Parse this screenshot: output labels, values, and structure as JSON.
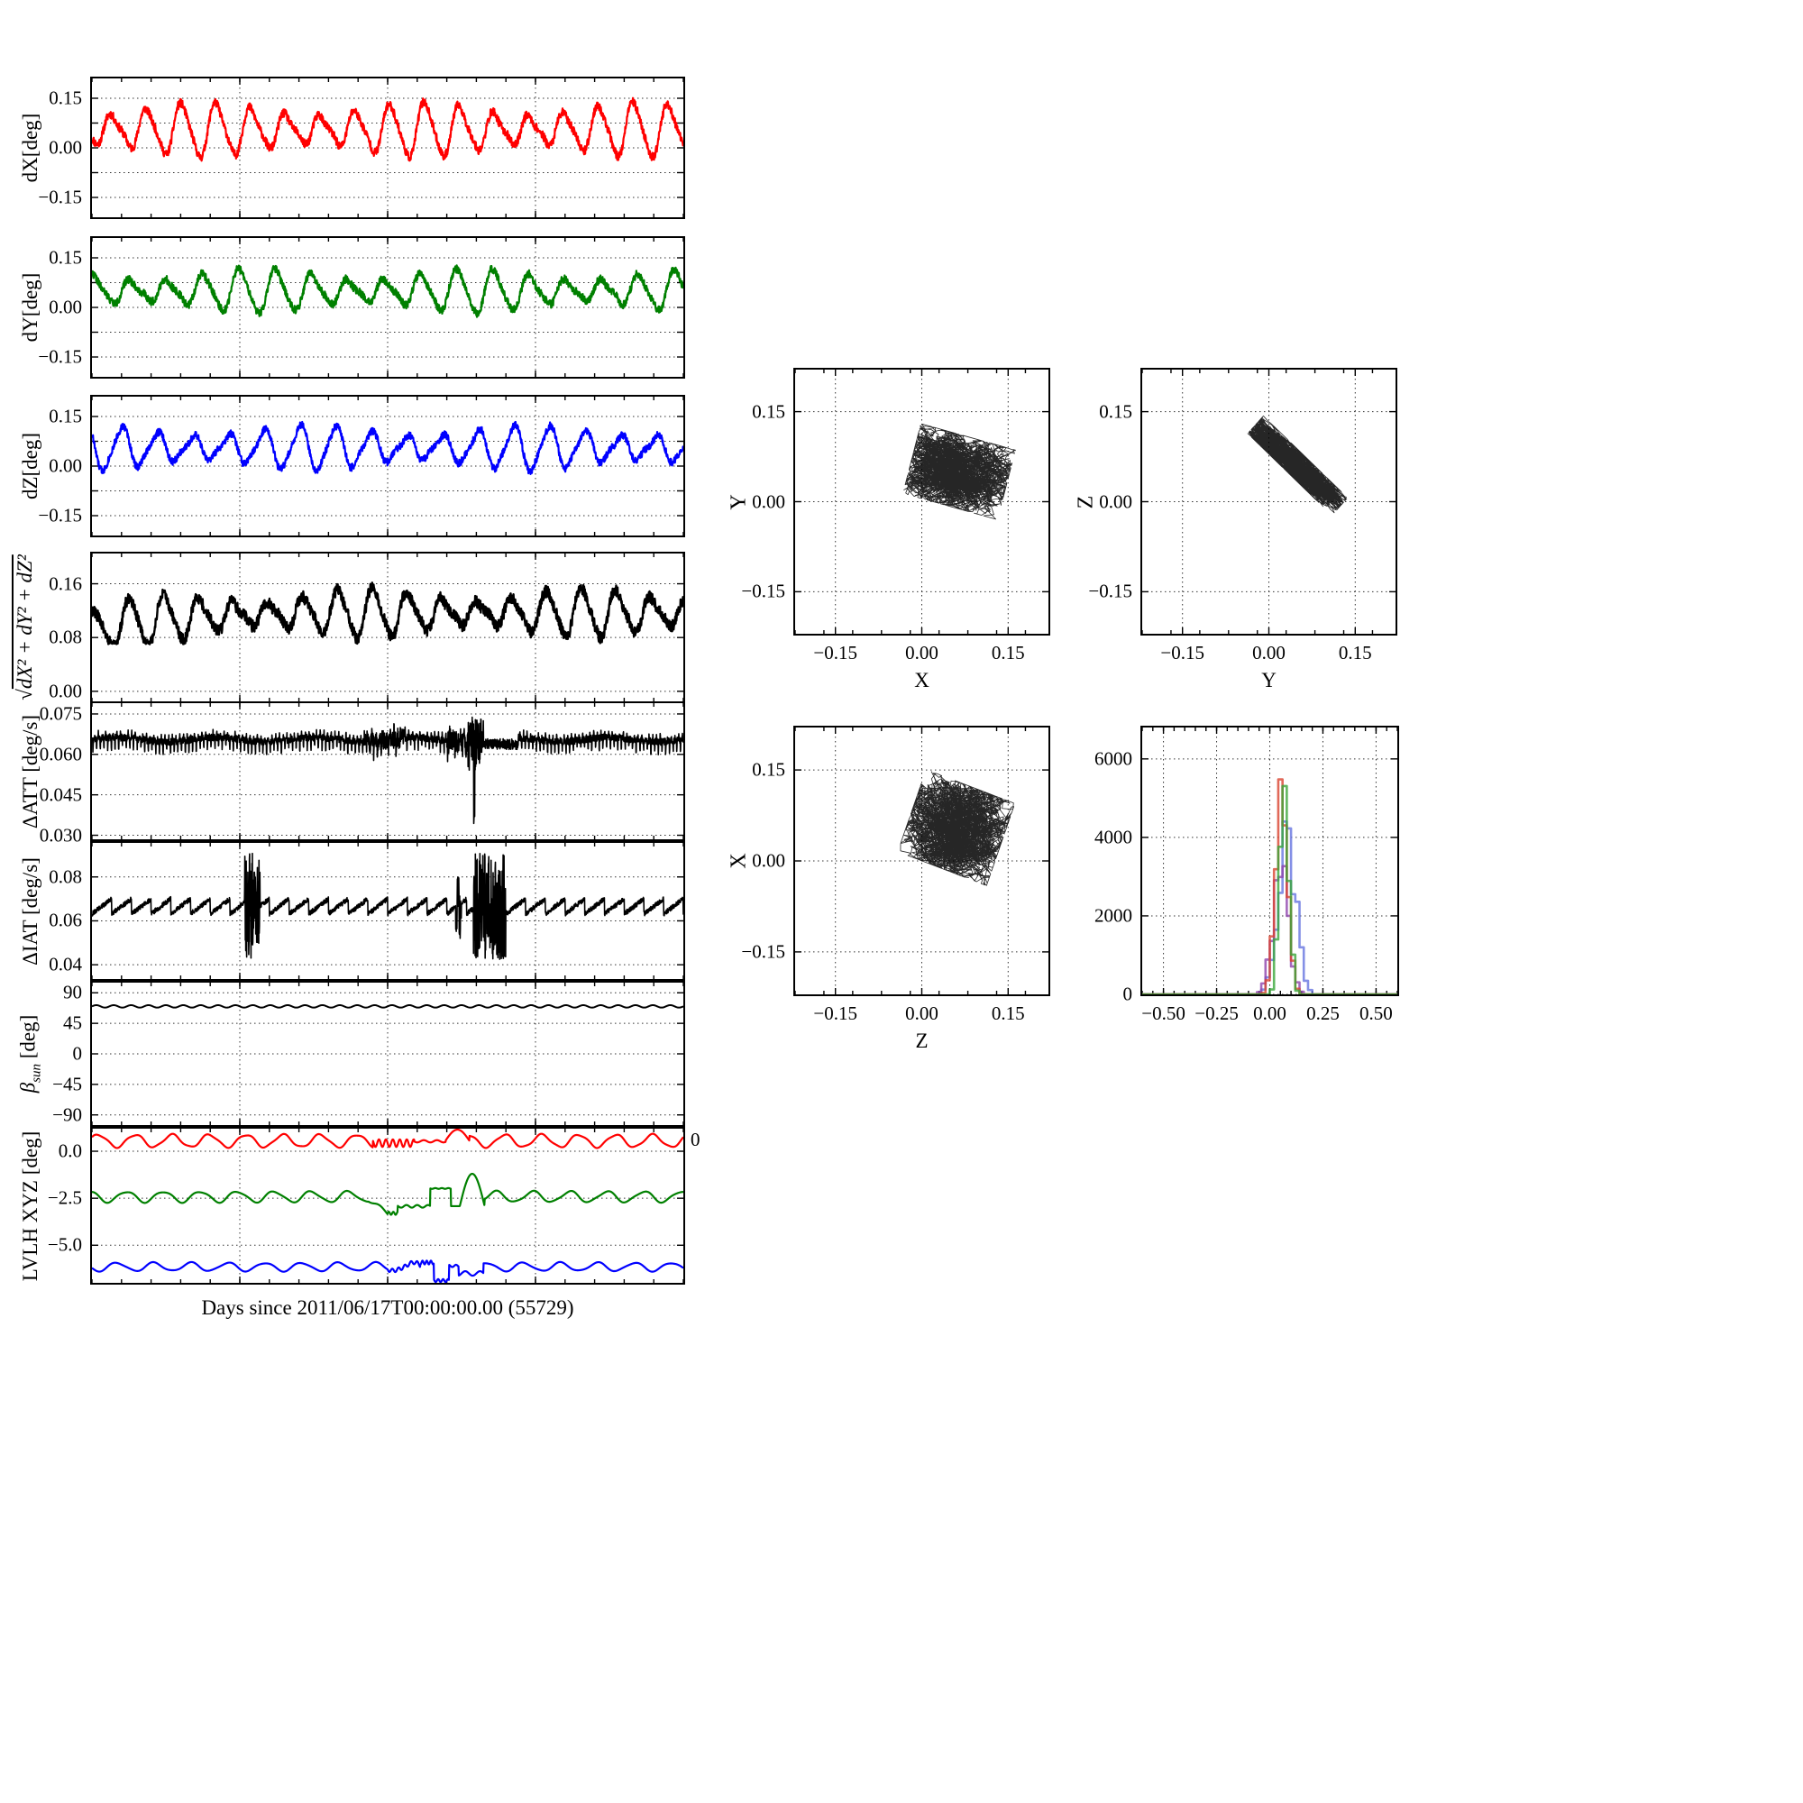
{
  "chart_data": {
    "figure": {
      "xlabel": "Days since 2011/06/17T00:00:00.00 (55729)",
      "stray_tick_label": "0",
      "background": "#ffffff"
    },
    "left_panels": [
      {
        "id": "dx",
        "type": "line",
        "ylabel": "dX[deg]",
        "ylim": [
          -0.21,
          0.21
        ],
        "xlim": [
          0,
          1
        ],
        "xgrid": [
          0.25,
          0.5,
          0.75
        ],
        "xminor": 0.05,
        "ytick_labels": [
          "−0.15",
          "0.00",
          "0.15"
        ],
        "ytick_values": [
          -0.15,
          0,
          0.15
        ],
        "ygrid": [
          -0.15,
          -0.075,
          0,
          0.075,
          0.15
        ],
        "series": [
          {
            "name": "dX",
            "color": "#ff0000",
            "gen": "osc",
            "mean": 0.055,
            "amp": 0.06,
            "cycles": 17,
            "phase": 4.2,
            "noise": 0.013,
            "mod": 0.35,
            "seed": 11,
            "lw": 2.2,
            "n": 1700
          }
        ]
      },
      {
        "id": "dy",
        "type": "line",
        "ylabel": "dY[deg]",
        "ylim": [
          -0.21,
          0.21
        ],
        "xlim": [
          0,
          1
        ],
        "xgrid": [
          0.25,
          0.5,
          0.75
        ],
        "xminor": 0.05,
        "ytick_labels": [
          "−0.15",
          "0.00",
          "0.15"
        ],
        "ytick_values": [
          -0.15,
          0,
          0.15
        ],
        "ygrid": [
          -0.15,
          -0.075,
          0,
          0.075,
          0.15
        ],
        "series": [
          {
            "name": "dY",
            "color": "#008000",
            "gen": "osc",
            "mean": 0.05,
            "amp": 0.047,
            "cycles": 16.3,
            "phase": 1.1,
            "noise": 0.012,
            "mod": 0.4,
            "seed": 22,
            "lw": 2.2,
            "n": 1700
          }
        ]
      },
      {
        "id": "dz",
        "type": "line",
        "ylabel": "dZ[deg]",
        "ylim": [
          -0.21,
          0.21
        ],
        "xlim": [
          0,
          1
        ],
        "xgrid": [
          0.25,
          0.5,
          0.75
        ],
        "xminor": 0.05,
        "ytick_labels": [
          "−0.15",
          "0.00",
          "0.15"
        ],
        "ytick_values": [
          -0.15,
          0,
          0.15
        ],
        "ygrid": [
          -0.15,
          -0.075,
          0,
          0.075,
          0.15
        ],
        "series": [
          {
            "name": "dZ",
            "color": "#0000ff",
            "gen": "osc",
            "mean": 0.055,
            "amp": 0.05,
            "cycles": 16.6,
            "phase": 2.6,
            "noise": 0.011,
            "mod": 0.35,
            "seed": 33,
            "lw": 2.2,
            "n": 1700
          }
        ]
      },
      {
        "id": "norm",
        "type": "line",
        "ylabel": "√dX²+dY²+dZ²",
        "ylabel_pre": "√",
        "ylabel_expr": "dX² + dY² + dZ²",
        "ylim": [
          -0.015,
          0.205
        ],
        "xlim": [
          0,
          1
        ],
        "xgrid": [
          0.25,
          0.5,
          0.75
        ],
        "xminor": 0.05,
        "ytick_labels": [
          "0.00",
          "0.08",
          "0.16"
        ],
        "ytick_values": [
          0,
          0.08,
          0.16
        ],
        "ygrid": [
          0,
          0.08,
          0.16
        ],
        "series": [
          {
            "name": "norm",
            "color": "#000000",
            "gen": "osc",
            "mean": 0.117,
            "amp": 0.026,
            "cycles": 17,
            "phase": 1.0,
            "noise": 0.009,
            "mod": 0.4,
            "drift": -0.028,
            "clampMin": 0.07,
            "seed": 44,
            "lw": 2.4,
            "n": 1700
          }
        ]
      },
      {
        "id": "att",
        "type": "line",
        "ylabel": "ΔATT [deg/s]",
        "ylim": [
          0.0285,
          0.079
        ],
        "xlim": [
          0,
          1
        ],
        "xgrid": [
          0.25,
          0.5,
          0.75
        ],
        "xminor": 0.05,
        "ytick_labels": [
          "0.030",
          "0.045",
          "0.060",
          "0.075"
        ],
        "ytick_values": [
          0.03,
          0.045,
          0.06,
          0.075
        ],
        "ygrid": [
          0.03,
          0.045,
          0.06,
          0.075
        ],
        "series": [
          {
            "name": "dATT",
            "color": "#000000",
            "gen": "att",
            "seed": 55,
            "lw": 1.6,
            "n": 2600
          }
        ]
      },
      {
        "id": "iat",
        "type": "line",
        "ylabel": "ΔIAT [deg/s]",
        "ylim": [
          0.0335,
          0.0955
        ],
        "xlim": [
          0,
          1
        ],
        "xgrid": [
          0.25,
          0.5,
          0.75
        ],
        "xminor": 0.05,
        "ytick_labels": [
          "0.04",
          "0.06",
          "0.08"
        ],
        "ytick_values": [
          0.04,
          0.06,
          0.08
        ],
        "ygrid": [
          0.04,
          0.06,
          0.08
        ],
        "series": [
          {
            "name": "dIAT",
            "color": "#000000",
            "gen": "iat",
            "seed": 66,
            "lw": 1.6,
            "n": 2600
          }
        ]
      },
      {
        "id": "beta",
        "type": "line",
        "ylabel": "β_sun [deg]",
        "ylabel_sym": "β",
        "ylabel_sub": "sun",
        "ylabel_rest": " [deg]",
        "ylim": [
          -105,
          105
        ],
        "xlim": [
          0,
          1
        ],
        "xgrid": [
          0.25,
          0.5,
          0.75
        ],
        "xminor": 0.05,
        "ytick_labels": [
          "−90",
          "−45",
          "0",
          "45",
          "90"
        ],
        "ytick_values": [
          -90,
          -45,
          0,
          45,
          90
        ],
        "ygrid": [
          -90,
          -45,
          0,
          45,
          90
        ],
        "series": [
          {
            "name": "beta_sun",
            "color": "#000000",
            "gen": "sine",
            "mean": 70,
            "amp": 1.8,
            "cycles": 34,
            "phase": 0,
            "lw": 2,
            "n": 1400
          }
        ]
      },
      {
        "id": "lvlh",
        "type": "line",
        "ylabel": "LVLH XYZ [deg]",
        "ylim": [
          -7.0,
          1.2
        ],
        "xlim": [
          0,
          1
        ],
        "xgrid": [
          0.25,
          0.5,
          0.75
        ],
        "xminor": 0.05,
        "ytick_labels": [
          "0.0",
          "−2.5",
          "−5.0"
        ],
        "ytick_values": [
          0,
          -2.5,
          -5
        ],
        "ygrid": [
          0,
          -2.5,
          -5
        ],
        "series": [
          {
            "name": "LVLH X",
            "color": "#ff0000",
            "gen": "lvlh-red",
            "mean": 0.55,
            "amp": 0.33,
            "cycles": 16,
            "phase": 0.5,
            "seed": 71,
            "lw": 2.2,
            "n": 1600
          },
          {
            "name": "LVLH Y",
            "color": "#008000",
            "gen": "lvlh-green",
            "mean": -2.42,
            "amp": 0.28,
            "cycles": 16,
            "phase": 2.0,
            "seed": 72,
            "lw": 2.2,
            "n": 1600
          },
          {
            "name": "LVLH Z",
            "color": "#0000ff",
            "gen": "lvlh-blue",
            "mean": -6.15,
            "amp": 0.22,
            "cycles": 16,
            "phase": 3.6,
            "seed": 73,
            "lw": 2.2,
            "n": 1600
          }
        ]
      }
    ],
    "scatter_panels": [
      {
        "id": "yx",
        "type": "scatter",
        "xlabel": "X",
        "ylabel": "Y",
        "xlim": [
          -0.22,
          0.22
        ],
        "ylim": [
          -0.22,
          0.22
        ],
        "xminor": 0.05,
        "xtick_labels": [
          "−0.15",
          "0.00",
          "0.15"
        ],
        "xtick_values": [
          -0.15,
          0,
          0.15
        ],
        "ytick_labels": [
          "−0.15",
          "0.00",
          "0.15"
        ],
        "ytick_values": [
          -0.15,
          0,
          0.15
        ],
        "xgrid": [
          -0.15,
          0,
          0.15
        ],
        "ygrid": [
          -0.15,
          0,
          0.15
        ],
        "cloud": {
          "color": "#000000",
          "cx": 0.065,
          "cy": 0.05,
          "rx": 0.085,
          "ry": 0.06,
          "angle": -15,
          "n": 4200,
          "seed": 101
        }
      },
      {
        "id": "zy",
        "type": "scatter",
        "xlabel": "Y",
        "ylabel": "Z",
        "xlim": [
          -0.22,
          0.22
        ],
        "ylim": [
          -0.22,
          0.22
        ],
        "xminor": 0.05,
        "xtick_labels": [
          "−0.15",
          "0.00",
          "0.15"
        ],
        "xtick_values": [
          -0.15,
          0,
          0.15
        ],
        "ytick_labels": [
          "−0.15",
          "0.00",
          "0.15"
        ],
        "ytick_values": [
          -0.15,
          0,
          0.15
        ],
        "xgrid": [
          -0.15,
          0,
          0.15
        ],
        "ygrid": [
          -0.15,
          0,
          0.15
        ],
        "cloud": {
          "color": "#000000",
          "cx": 0.05,
          "cy": 0.06,
          "rx": 0.1,
          "ry": 0.02,
          "angle": -43,
          "n": 4200,
          "seed": 202
        }
      },
      {
        "id": "xz",
        "type": "scatter",
        "xlabel": "Z",
        "ylabel": "X",
        "xlim": [
          -0.22,
          0.22
        ],
        "ylim": [
          -0.22,
          0.22
        ],
        "xminor": 0.05,
        "xtick_labels": [
          "−0.15",
          "0.00",
          "0.15"
        ],
        "xtick_values": [
          -0.15,
          0,
          0.15
        ],
        "ytick_labels": [
          "−0.15",
          "0.00",
          "0.15"
        ],
        "ytick_values": [
          -0.15,
          0,
          0.15
        ],
        "xgrid": [
          -0.15,
          0,
          0.15
        ],
        "ygrid": [
          -0.15,
          0,
          0.15
        ],
        "cloud": {
          "color": "#000000",
          "cx": 0.06,
          "cy": 0.055,
          "rx": 0.082,
          "ry": 0.072,
          "angle": -20,
          "n": 4200,
          "seed": 303
        }
      }
    ],
    "histogram": {
      "id": "hist",
      "type": "histogram",
      "xlim": [
        -0.6,
        0.6
      ],
      "ylim": [
        0,
        6800
      ],
      "bin": 0.02,
      "xminor": 0.05,
      "xtick_labels": [
        "−0.50",
        "−0.25",
        "0.00",
        "0.25",
        "0.50"
      ],
      "xtick_values": [
        -0.5,
        -0.25,
        0,
        0.25,
        0.5
      ],
      "ytick_labels": [
        "0",
        "2000",
        "4000",
        "6000"
      ],
      "ytick_values": [
        0,
        2000,
        4000,
        6000
      ],
      "xgrid": [
        -0.5,
        -0.25,
        0,
        0.25,
        0.5
      ],
      "ygrid": [
        0,
        2000,
        4000,
        6000
      ],
      "series": [
        {
          "name": "blue",
          "color": "#6674e0",
          "mean": 0.08,
          "sigma": 0.042,
          "peak": 4200,
          "seed": 91
        },
        {
          "name": "purple",
          "color": "#8e44ad",
          "mean": 0.05,
          "sigma": 0.036,
          "peak": 3100,
          "seed": 92
        },
        {
          "name": "red",
          "color": "#d9432f",
          "mean": 0.055,
          "sigma": 0.027,
          "peak": 5900,
          "seed": 93
        },
        {
          "name": "green",
          "color": "#3aa63a",
          "mean": 0.068,
          "sigma": 0.021,
          "peak": 6300,
          "seed": 94
        }
      ]
    }
  }
}
